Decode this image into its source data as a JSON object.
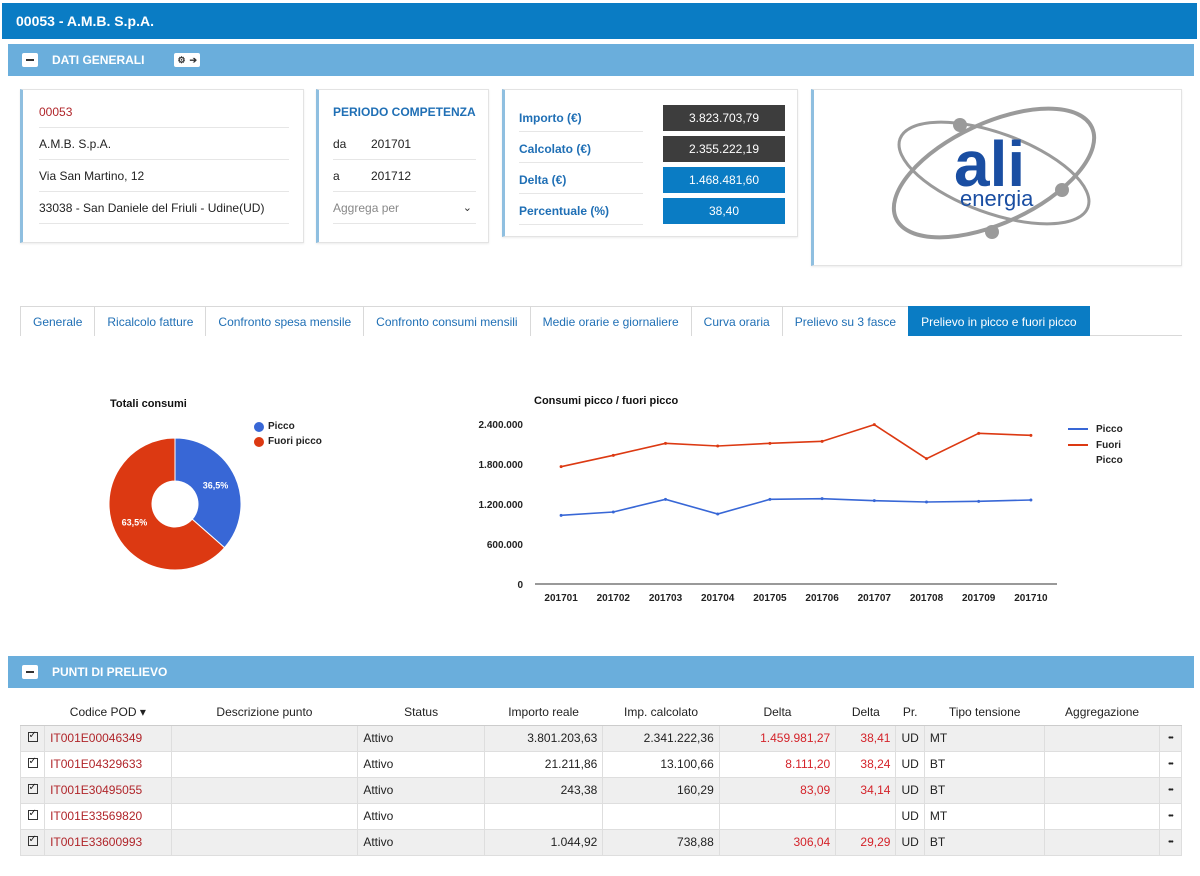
{
  "window": {
    "title": "00053 - A.M.B. S.p.A."
  },
  "dati_generali": {
    "title": "DATI GENERALI",
    "customer": {
      "code": "00053",
      "name": "A.M.B. S.p.A.",
      "address": "Via San Martino, 12",
      "city": "33038 - San Daniele del Friuli - Udine(UD)"
    },
    "periodo": {
      "title": "PERIODO COMPETENZA",
      "da_label": "da",
      "da_value": "201701",
      "a_label": "a",
      "a_value": "201712",
      "aggrega_placeholder": "Aggrega per"
    },
    "importi": [
      {
        "label": "Importo (€)",
        "value": "3.823.703,79",
        "style": "dark"
      },
      {
        "label": "Calcolato (€)",
        "value": "2.355.222,19",
        "style": "dark"
      },
      {
        "label": "Delta (€)",
        "value": "1.468.481,60",
        "style": "blue"
      },
      {
        "label": "Percentuale (%)",
        "value": "38,40",
        "style": "blue"
      }
    ],
    "logo": {
      "text_main": "ali",
      "text_sub": "energia"
    }
  },
  "tabs": [
    {
      "label": "Generale",
      "active": false
    },
    {
      "label": "Ricalcolo fatture",
      "active": false
    },
    {
      "label": "Confronto spesa mensile",
      "active": false
    },
    {
      "label": "Confronto consumi mensili",
      "active": false
    },
    {
      "label": "Medie orarie e giornaliere",
      "active": false
    },
    {
      "label": "Curva oraria",
      "active": false
    },
    {
      "label": "Prelievo su 3 fasce",
      "active": false
    },
    {
      "label": "Prelievo in picco e fuori picco",
      "active": true
    }
  ],
  "chart_data": [
    {
      "type": "pie",
      "title": "Totali consumi",
      "slices": [
        {
          "name": "Picco",
          "value": 36.5,
          "label": "36,5%",
          "color": "#3867d6"
        },
        {
          "name": "Fuori picco",
          "value": 63.5,
          "label": "63,5%",
          "color": "#dc3912"
        }
      ]
    },
    {
      "type": "line",
      "title": "Consumi picco / fuori picco",
      "categories": [
        "201701",
        "201702",
        "201703",
        "201704",
        "201705",
        "201706",
        "201707",
        "201708",
        "201709",
        "201710"
      ],
      "y_ticks": [
        "0",
        "600.000",
        "1.200.000",
        "1.800.000",
        "2.400.000"
      ],
      "ylim": [
        0,
        2400000
      ],
      "series": [
        {
          "name": "Picco",
          "color": "#3867d6",
          "values": [
            1030000,
            1080000,
            1270000,
            1050000,
            1270000,
            1280000,
            1250000,
            1230000,
            1240000,
            1260000
          ]
        },
        {
          "name": "Fuori Picco",
          "color": "#dc3912",
          "values": [
            1760000,
            1930000,
            2110000,
            2070000,
            2110000,
            2140000,
            2390000,
            1880000,
            2260000,
            2230000
          ]
        }
      ]
    }
  ],
  "punti_prelievo": {
    "title": "PUNTI DI PRELIEVO",
    "columns": [
      "Codice POD",
      "Descrizione punto",
      "Status",
      "Importo reale",
      "Imp. calcolato",
      "Delta",
      "Delta",
      "Pr.",
      "Tipo tensione",
      "Aggregazione"
    ],
    "sort_indicator": "▾",
    "rows": [
      {
        "pod": "IT001E00046349",
        "descr": "",
        "status": "Attivo",
        "importo": "3.801.203,63",
        "calcolato": "2.341.222,36",
        "delta": "1.459.981,27",
        "delta_pct": "38,41",
        "pr": "UD",
        "tensione": "MT",
        "aggr": ""
      },
      {
        "pod": "IT001E04329633",
        "descr": "",
        "status": "Attivo",
        "importo": "21.211,86",
        "calcolato": "13.100,66",
        "delta": "8.111,20",
        "delta_pct": "38,24",
        "pr": "UD",
        "tensione": "BT",
        "aggr": ""
      },
      {
        "pod": "IT001E30495055",
        "descr": "",
        "status": "Attivo",
        "importo": "243,38",
        "calcolato": "160,29",
        "delta": "83,09",
        "delta_pct": "34,14",
        "pr": "UD",
        "tensione": "BT",
        "aggr": ""
      },
      {
        "pod": "IT001E33569820",
        "descr": "",
        "status": "Attivo",
        "importo": "",
        "calcolato": "",
        "delta": "",
        "delta_pct": "",
        "pr": "UD",
        "tensione": "MT",
        "aggr": ""
      },
      {
        "pod": "IT001E33600993",
        "descr": "",
        "status": "Attivo",
        "importo": "1.044,92",
        "calcolato": "738,88",
        "delta": "306,04",
        "delta_pct": "29,29",
        "pr": "UD",
        "tensione": "BT",
        "aggr": ""
      }
    ]
  }
}
